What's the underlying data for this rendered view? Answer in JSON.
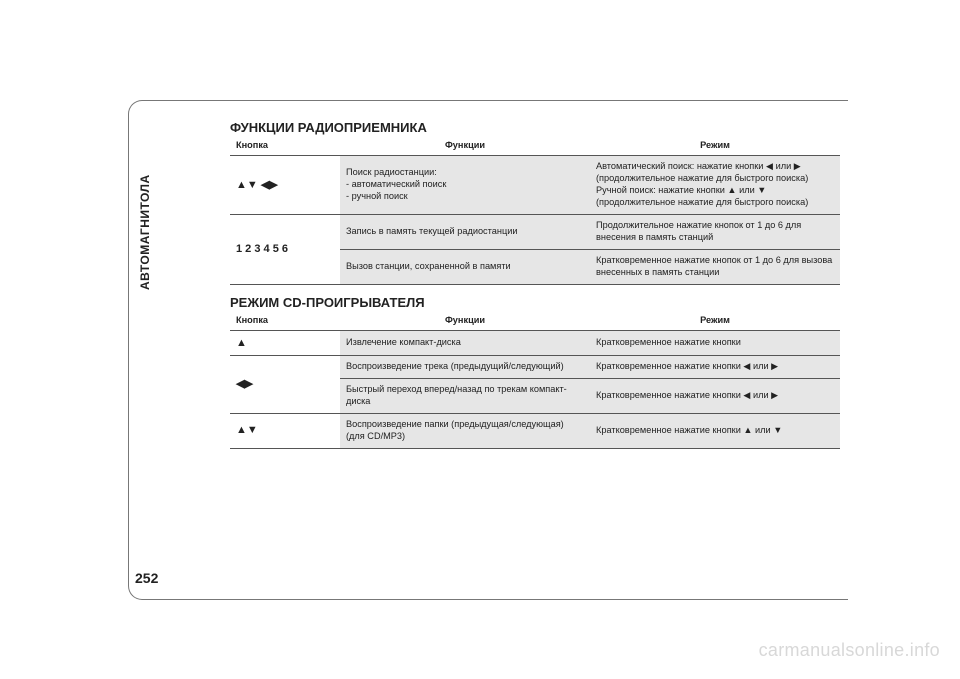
{
  "side_label": "АВТОМАГНИТОЛА",
  "page_number": "252",
  "watermark": "carmanualsonline.info",
  "icons": {
    "up": "▲",
    "down": "▼",
    "left": "◀",
    "right": "▶",
    "eject": "▲"
  },
  "section1": {
    "title": "ФУНКЦИИ РАДИОПРИЕМНИКА",
    "headers": {
      "btn": "Кнопка",
      "func": "Функции",
      "mode": "Режим"
    },
    "rows": {
      "r1": {
        "btn": "▲▼ ◀▶",
        "func": "Поиск радиостанции:\n- автоматический поиск\n- ручной поиск",
        "mode": "Автоматический поиск: нажатие кнопки ◀ или ▶ (продолжительное нажатие для быстрого поиска)\nРучной поиск: нажатие кнопки ▲ или ▼ (продолжительное нажатие для быстрого поиска)"
      },
      "r2": {
        "btn": "1 2 3 4 5 6",
        "func_a": "Запись в память текущей радиостанции",
        "mode_a": "Продолжительное нажатие кнопок от 1 до 6 для внесения в память станций",
        "func_b": "Вызов станции, сохраненной в памяти",
        "mode_b": "Кратковременное нажатие кнопок от 1 до 6 для вызова внесенных в память станции"
      }
    }
  },
  "section2": {
    "title": "РЕЖИМ CD-ПРОИГРЫВАТЕЛЯ",
    "headers": {
      "btn": "Кнопка",
      "func": "Функции",
      "mode": "Режим"
    },
    "rows": {
      "r1": {
        "btn": "▲",
        "func": "Извлечение компакт-диска",
        "mode": "Кратковременное нажатие кнопки"
      },
      "r2": {
        "btn": "◀▶",
        "func_a": "Воспроизведение трека (предыдущий/следующий)",
        "mode_a": "Кратковременное нажатие кнопки ◀ или ▶",
        "func_b": "Быстрый переход вперед/назад по трекам компакт-диска",
        "mode_b": "Кратковременное нажатие кнопки ◀ или ▶"
      },
      "r3": {
        "btn": "▲▼",
        "func": "Воспроизведение папки (предыдущая/следующая)\n(для CD/MP3)",
        "mode": "Кратковременное нажатие кнопки ▲ или ▼"
      }
    }
  }
}
